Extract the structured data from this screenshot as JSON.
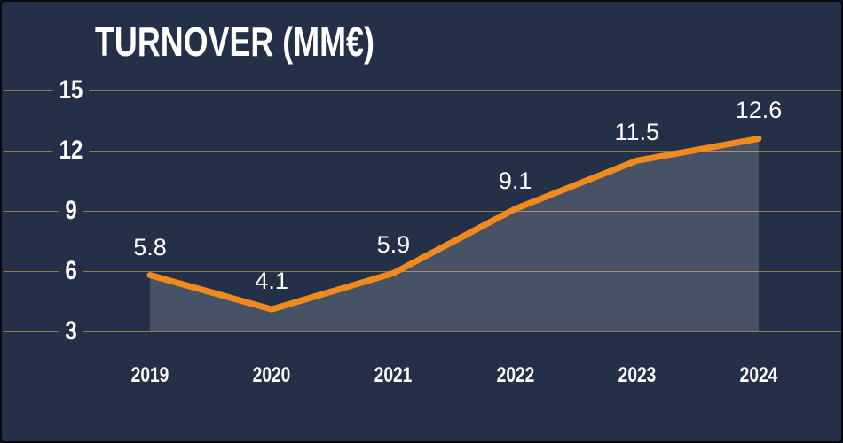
{
  "chart_data": {
    "type": "area",
    "title": "TURNOVER (MM€)",
    "categories": [
      "2019",
      "2020",
      "2021",
      "2022",
      "2023",
      "2024"
    ],
    "values": [
      5.8,
      4.1,
      5.9,
      9.1,
      11.5,
      12.6
    ],
    "data_labels": [
      "5.8",
      "4.1",
      "5.9",
      "9.1",
      "11.5",
      "12.6"
    ],
    "y_ticks": [
      3,
      6,
      9,
      12,
      15
    ],
    "y_tick_labels": [
      "3",
      "6",
      "9",
      "12",
      "15"
    ],
    "ylim": [
      3,
      15
    ],
    "xlabel": "",
    "ylabel": "",
    "grid": "horizontal",
    "legend": "none",
    "colors": {
      "background": "#233048",
      "line": "#f08a1d",
      "area_fill": "rgba(255,255,255,0.17)",
      "gridline": "#8d7c52",
      "text": "#ffffff"
    }
  }
}
